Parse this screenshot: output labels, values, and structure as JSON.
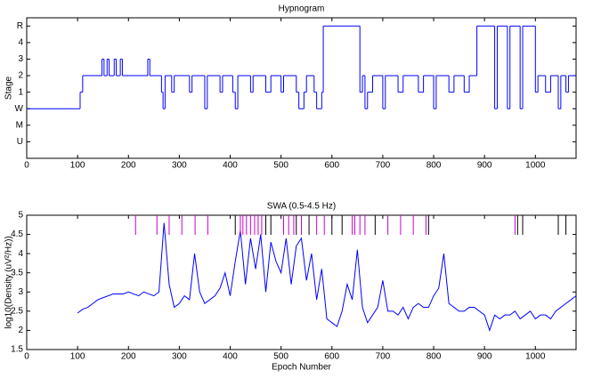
{
  "chart_data": [
    {
      "type": "line",
      "drawstyle": "steps-post",
      "title": "Hypnogram",
      "ylabel": "Stage",
      "color": "#0000ff",
      "xlim": [
        0,
        1080
      ],
      "xticks": [
        0,
        100,
        200,
        300,
        400,
        500,
        600,
        700,
        800,
        900,
        1000
      ],
      "ylim": [
        -1,
        7.5
      ],
      "yticks": [
        {
          "value": 0,
          "label": "U"
        },
        {
          "value": 1,
          "label": "M"
        },
        {
          "value": 2,
          "label": "W"
        },
        {
          "value": 3,
          "label": "1"
        },
        {
          "value": 4,
          "label": "2"
        },
        {
          "value": 5,
          "label": "3"
        },
        {
          "value": 6,
          "label": "4"
        },
        {
          "value": 7,
          "label": "R"
        }
      ],
      "x": [
        0,
        105,
        110,
        148,
        152,
        158,
        162,
        172,
        176,
        184,
        188,
        238,
        242,
        265,
        268,
        272,
        285,
        290,
        320,
        325,
        350,
        355,
        380,
        385,
        405,
        410,
        415,
        440,
        445,
        470,
        480,
        500,
        505,
        530,
        535,
        545,
        550,
        565,
        570,
        580,
        583,
        655,
        660,
        665,
        670,
        680,
        700,
        705,
        730,
        740,
        770,
        780,
        800,
        805,
        830,
        840,
        860,
        870,
        885,
        920,
        925,
        945,
        950,
        970,
        975,
        1000,
        1005,
        1020,
        1030,
        1045,
        1050,
        1060,
        1065,
        1080
      ],
      "values": [
        2,
        3,
        4,
        5,
        4,
        5,
        4,
        5,
        4,
        5,
        4,
        5,
        4,
        3,
        2,
        4,
        3,
        4,
        3,
        4,
        2,
        4,
        3,
        4,
        3,
        2,
        4,
        3,
        4,
        3,
        4,
        3,
        4,
        3,
        2,
        3,
        4,
        3,
        2,
        3,
        7,
        3,
        4,
        2,
        3,
        4,
        2,
        4,
        3,
        4,
        3,
        4,
        2,
        4,
        3,
        4,
        3,
        4,
        7,
        2,
        7,
        2,
        7,
        2,
        7,
        3,
        4,
        3,
        4,
        2,
        4,
        3,
        4,
        4
      ]
    },
    {
      "type": "line",
      "title": "SWA (0.5-4.5 Hz)",
      "xlabel": "Epoch Number",
      "ylabel": "log10(Density (uV²/Hz))",
      "color": "#0000ff",
      "xlim": [
        0,
        1080
      ],
      "xticks": [
        0,
        100,
        200,
        300,
        400,
        500,
        600,
        700,
        800,
        900,
        1000
      ],
      "ylim": [
        1.5,
        5
      ],
      "yticks": [
        1.5,
        2,
        2.5,
        3,
        3.5,
        4,
        4.5,
        5
      ],
      "x": [
        100,
        110,
        120,
        130,
        140,
        150,
        160,
        170,
        180,
        190,
        200,
        210,
        220,
        230,
        240,
        250,
        260,
        270,
        280,
        290,
        300,
        310,
        320,
        330,
        340,
        350,
        360,
        370,
        380,
        390,
        400,
        410,
        420,
        430,
        440,
        450,
        460,
        470,
        480,
        490,
        500,
        510,
        520,
        530,
        540,
        550,
        560,
        570,
        580,
        590,
        600,
        610,
        620,
        630,
        640,
        650,
        660,
        670,
        680,
        690,
        700,
        710,
        720,
        730,
        740,
        750,
        760,
        770,
        780,
        790,
        800,
        810,
        820,
        830,
        840,
        850,
        860,
        870,
        880,
        890,
        900,
        910,
        920,
        930,
        940,
        950,
        960,
        970,
        980,
        990,
        1000,
        1010,
        1020,
        1030,
        1040,
        1050,
        1060,
        1070,
        1080
      ],
      "values": [
        2.45,
        2.55,
        2.6,
        2.7,
        2.8,
        2.85,
        2.9,
        2.95,
        2.95,
        2.95,
        3.0,
        2.95,
        2.9,
        3.0,
        2.95,
        2.9,
        3.0,
        4.8,
        3.2,
        2.6,
        2.7,
        2.9,
        2.8,
        4.0,
        3.0,
        2.7,
        2.8,
        2.9,
        3.1,
        3.5,
        2.9,
        3.8,
        4.6,
        3.2,
        4.4,
        3.6,
        4.5,
        3.0,
        4.3,
        3.8,
        3.5,
        4.4,
        3.2,
        4.2,
        4.4,
        3.3,
        4.0,
        2.8,
        3.6,
        2.3,
        2.2,
        2.1,
        2.5,
        3.2,
        2.8,
        4.1,
        2.6,
        2.2,
        2.4,
        2.6,
        3.3,
        2.5,
        2.5,
        2.4,
        2.6,
        2.3,
        2.6,
        2.7,
        2.6,
        2.6,
        2.9,
        3.1,
        4.0,
        2.7,
        2.6,
        2.5,
        2.5,
        2.6,
        2.6,
        2.5,
        2.4,
        2.0,
        2.4,
        2.3,
        2.4,
        2.4,
        2.5,
        2.3,
        2.4,
        2.5,
        2.3,
        2.4,
        2.4,
        2.3,
        2.5,
        2.6,
        2.7,
        2.8,
        2.9
      ],
      "events": [
        {
          "color": "#cc00cc",
          "x": [
            214,
            256,
            280,
            305,
            331,
            356,
            420,
            425,
            432,
            440,
            448,
            455,
            462,
            505,
            515,
            525,
            540,
            570,
            585,
            640,
            645,
            655,
            665,
            710,
            735,
            760,
            785,
            960
          ]
        },
        {
          "color": "#000000",
          "x": [
            410,
            470,
            480,
            530,
            555,
            600,
            620,
            685,
            790,
            965,
            975,
            1045,
            1060
          ]
        }
      ]
    }
  ]
}
